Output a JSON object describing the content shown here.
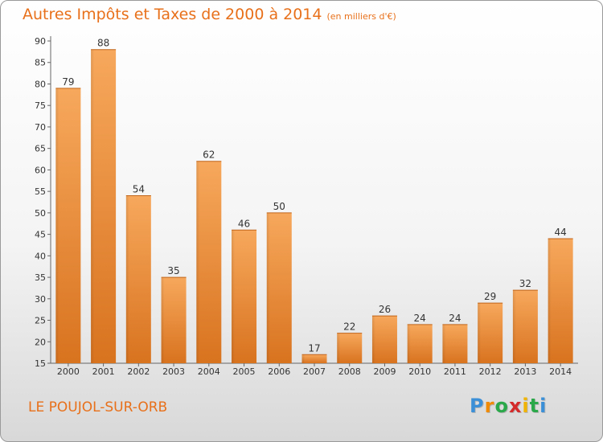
{
  "title": "Autres Impôts et Taxes de 2000 à 2014",
  "subtitle": "(en milliers d'€)",
  "place": "LE POUJOL-SUR-ORB",
  "logo": {
    "letters": [
      "P",
      "r",
      "o",
      "x",
      "i",
      "t",
      "i"
    ],
    "colors": [
      "#3a8fd6",
      "#f08a00",
      "#2aa84a",
      "#d42a2a",
      "#f0b400",
      "#2aa84a",
      "#3a8fd6"
    ]
  },
  "colors": {
    "bar_light": "#f7a85c",
    "bar_dark": "#d8731f",
    "text_accent": "#e8701a"
  },
  "chart_data": {
    "type": "bar",
    "title": "Autres Impôts et Taxes de 2000 à 2014",
    "categories": [
      "2000",
      "2001",
      "2002",
      "2003",
      "2004",
      "2005",
      "2006",
      "2007",
      "2008",
      "2009",
      "2010",
      "2011",
      "2012",
      "2013",
      "2014"
    ],
    "values": [
      79,
      88,
      54,
      35,
      62,
      46,
      50,
      17,
      22,
      26,
      24,
      24,
      29,
      32,
      44
    ],
    "ylim": [
      15,
      90
    ],
    "yticks": [
      15,
      20,
      25,
      30,
      35,
      40,
      45,
      50,
      55,
      60,
      65,
      70,
      75,
      80,
      85,
      90
    ],
    "grid": false
  }
}
